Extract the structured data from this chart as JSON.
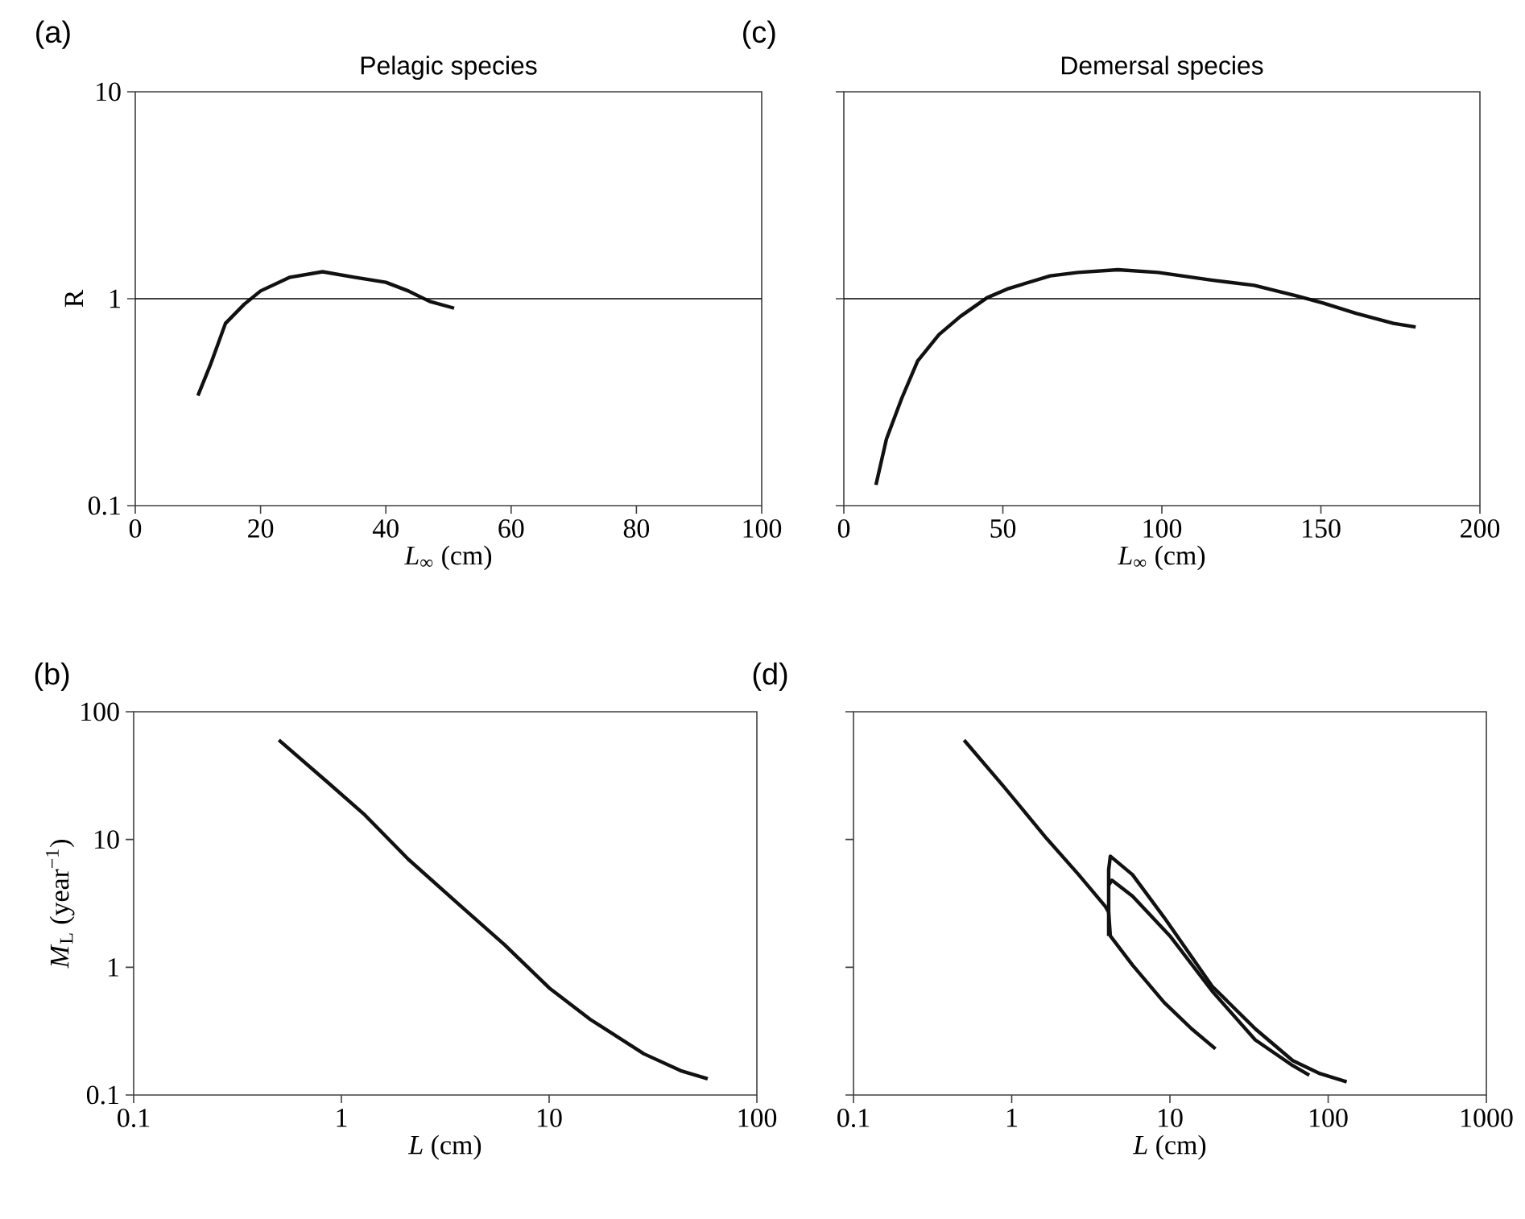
{
  "chart_data": [
    {
      "type": "line",
      "title": "Pelagic species",
      "xlabel": "*L*$_{∞}$ (cm)",
      "ylabel": "R",
      "annotations": [
        "(a)"
      ],
      "log": "y",
      "xlim": [
        0,
        100
      ],
      "xticks": [
        0,
        20,
        40,
        60,
        80,
        100
      ],
      "ylim": [
        0.1,
        10
      ],
      "yticks": [
        0.1,
        1,
        10
      ],
      "ref_lines": [
        {
          "axis": "y",
          "value": 1,
          "color": "#000000"
        }
      ],
      "series": [
        {
          "color": "#111111",
          "x": [
            10,
            12,
            14.4,
            17.4,
            20,
            24.7,
            29.9,
            35,
            40,
            43.6,
            47,
            50.9
          ],
          "values": [
            0.34,
            0.48,
            0.76,
            0.94,
            1.09,
            1.27,
            1.35,
            1.27,
            1.2,
            1.09,
            0.97,
            0.9
          ]
        }
      ]
    },
    {
      "type": "line",
      "title": "Demersal species",
      "xlabel": "*L*$_{∞}$ (cm)",
      "annotations": [
        "(c)"
      ],
      "log": "y",
      "tick_labels": "x",
      "xlim": [
        0,
        200
      ],
      "xticks": [
        0,
        50,
        100,
        150,
        200
      ],
      "ylim": [
        0.1,
        10
      ],
      "yticks": [
        0.1,
        1,
        10
      ],
      "ref_lines": [
        {
          "axis": "y",
          "value": 1,
          "color": "#000000"
        }
      ],
      "series": [
        {
          "color": "#111111",
          "x": [
            10.1,
            13.4,
            18.2,
            23.2,
            29.9,
            36.6,
            45,
            51.8,
            64.9,
            73.6,
            86.2,
            98.8,
            115.6,
            129,
            142.5,
            150.9,
            161,
            172.8,
            179.8
          ],
          "values": [
            0.126,
            0.21,
            0.33,
            0.5,
            0.67,
            0.82,
            1.01,
            1.12,
            1.29,
            1.34,
            1.38,
            1.34,
            1.23,
            1.16,
            1.03,
            0.95,
            0.85,
            0.76,
            0.73
          ]
        }
      ]
    },
    {
      "type": "line",
      "xlabel": "*L* (cm)",
      "ylabel": "*M*$_{L}$ (year$^{−1}$)",
      "annotations": [
        "(b)"
      ],
      "log": "xy",
      "xlim": [
        0.1,
        100
      ],
      "xticks": [
        0.1,
        1,
        10,
        100
      ],
      "ylim": [
        0.1,
        100
      ],
      "yticks": [
        0.1,
        1,
        10,
        100
      ],
      "series": [
        {
          "color": "#111111",
          "x": [
            0.5,
            0.86,
            1.3,
            2.1,
            3.6,
            6.1,
            10,
            15.8,
            28.6,
            43,
            58
          ],
          "values": [
            60,
            28,
            15.5,
            7.0,
            3.2,
            1.5,
            0.69,
            0.39,
            0.21,
            0.155,
            0.134
          ]
        }
      ]
    },
    {
      "type": "line",
      "xlabel": "*L* (cm)",
      "annotations": [
        "(d)"
      ],
      "log": "xy",
      "tick_labels": "x",
      "xlim": [
        0.1,
        1000
      ],
      "xticks": [
        0.1,
        1,
        10,
        100,
        1000
      ],
      "ylim": [
        0.1,
        100
      ],
      "yticks": [
        0.1,
        1,
        10,
        100
      ],
      "series": [
        {
          "color": "#111111",
          "x": [
            0.5,
            0.89,
            1.66,
            2.65,
            3.9,
            4.1,
            4.2,
            5.8,
            9.2,
            13.7,
            19.4
          ],
          "values": [
            60,
            26,
            10.2,
            5.3,
            3.0,
            2.7,
            1.76,
            1.04,
            0.53,
            0.33,
            0.23
          ]
        },
        {
          "color": "#111111",
          "x": [
            4.1,
            4.1,
            4.2,
            5.8,
            9.2,
            18.5,
            34.6,
            59.7,
            88.8,
            131
          ],
          "values": [
            1.76,
            5.8,
            7.4,
            5.3,
            2.45,
            0.71,
            0.33,
            0.186,
            0.147,
            0.127
          ]
        },
        {
          "color": "#111111",
          "x": [
            4.1,
            4.3,
            5.8,
            10,
            18.5,
            34.6,
            59.7,
            76
          ],
          "values": [
            4.4,
            4.8,
            3.6,
            1.76,
            0.65,
            0.27,
            0.17,
            0.143
          ]
        }
      ]
    }
  ]
}
